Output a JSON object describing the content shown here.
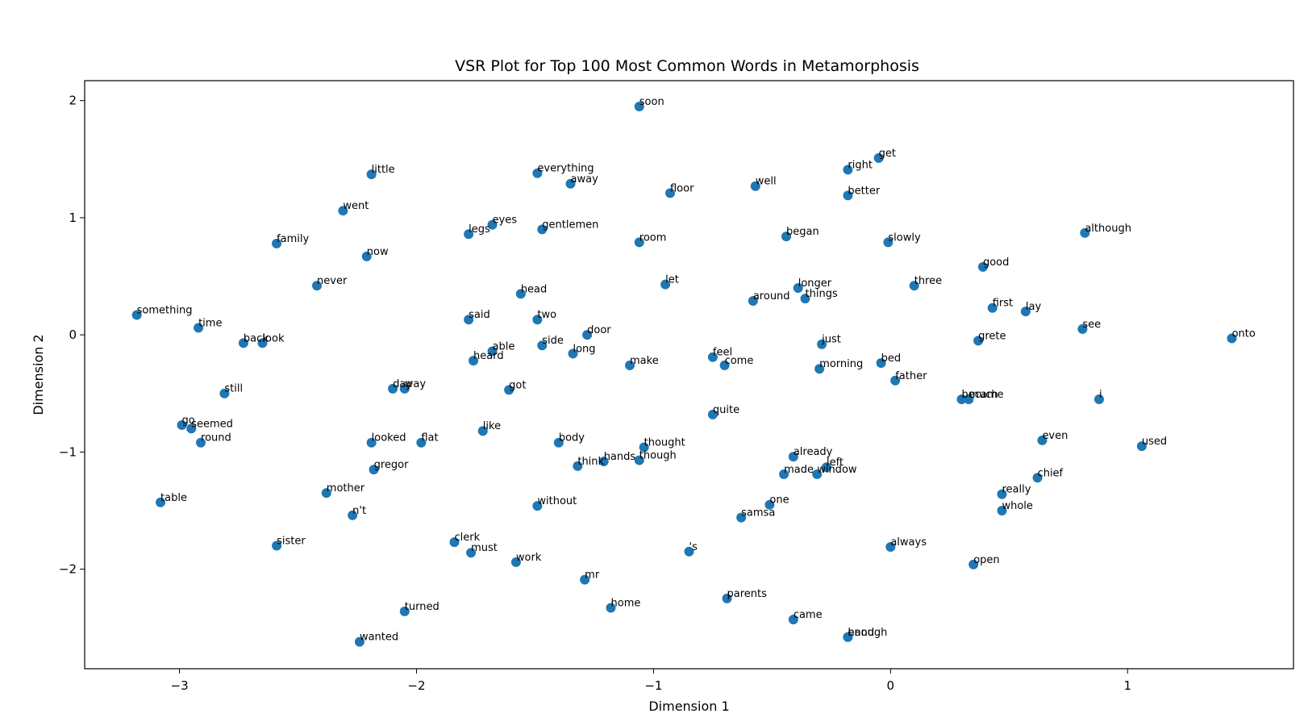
{
  "chart_data": {
    "type": "scatter",
    "title": "VSR Plot for Top 100 Most Common Words in Metamorphosis",
    "xlabel": "Dimension 1",
    "ylabel": "Dimension 2",
    "xlim": [
      -3.4,
      1.7
    ],
    "ylim": [
      -2.85,
      2.17
    ],
    "xticks": [
      -3,
      -2,
      -1,
      0,
      1
    ],
    "yticks": [
      -2,
      -1,
      0,
      1,
      2
    ],
    "grid": false,
    "marker_color": "#1f77b4",
    "points": [
      {
        "label": "soon",
        "x": -1.06,
        "y": 1.95
      },
      {
        "label": "little",
        "x": -2.19,
        "y": 1.37
      },
      {
        "label": "everything",
        "x": -1.49,
        "y": 1.38
      },
      {
        "label": "away",
        "x": -1.35,
        "y": 1.29
      },
      {
        "label": "floor",
        "x": -0.93,
        "y": 1.21
      },
      {
        "label": "well",
        "x": -0.57,
        "y": 1.27
      },
      {
        "label": "right",
        "x": -0.18,
        "y": 1.41
      },
      {
        "label": "get",
        "x": -0.05,
        "y": 1.51
      },
      {
        "label": "better",
        "x": -0.18,
        "y": 1.19
      },
      {
        "label": "went",
        "x": -2.31,
        "y": 1.06
      },
      {
        "label": "eyes",
        "x": -1.68,
        "y": 0.94
      },
      {
        "label": "legs",
        "x": -1.78,
        "y": 0.86
      },
      {
        "label": "gentlemen",
        "x": -1.47,
        "y": 0.9
      },
      {
        "label": "room",
        "x": -1.06,
        "y": 0.79
      },
      {
        "label": "began",
        "x": -0.44,
        "y": 0.84
      },
      {
        "label": "slowly",
        "x": -0.01,
        "y": 0.79
      },
      {
        "label": "although",
        "x": 0.82,
        "y": 0.87
      },
      {
        "label": "family",
        "x": -2.59,
        "y": 0.78
      },
      {
        "label": "now",
        "x": -2.21,
        "y": 0.67
      },
      {
        "label": "good",
        "x": 0.39,
        "y": 0.58
      },
      {
        "label": "never",
        "x": -2.42,
        "y": 0.42
      },
      {
        "label": "let",
        "x": -0.95,
        "y": 0.43
      },
      {
        "label": "head",
        "x": -1.56,
        "y": 0.35
      },
      {
        "label": "longer",
        "x": -0.39,
        "y": 0.4
      },
      {
        "label": "three",
        "x": 0.1,
        "y": 0.42
      },
      {
        "label": "things",
        "x": -0.36,
        "y": 0.31
      },
      {
        "label": "around",
        "x": -0.58,
        "y": 0.29
      },
      {
        "label": "first",
        "x": 0.43,
        "y": 0.23
      },
      {
        "label": "lay",
        "x": 0.57,
        "y": 0.2
      },
      {
        "label": "something",
        "x": -3.18,
        "y": 0.17
      },
      {
        "label": "said",
        "x": -1.78,
        "y": 0.13
      },
      {
        "label": "two",
        "x": -1.49,
        "y": 0.13
      },
      {
        "label": "time",
        "x": -2.92,
        "y": 0.06
      },
      {
        "label": "see",
        "x": 0.81,
        "y": 0.05
      },
      {
        "label": "door",
        "x": -1.28,
        "y": 0.0
      },
      {
        "label": "onto",
        "x": 1.44,
        "y": -0.03
      },
      {
        "label": "back",
        "x": -2.73,
        "y": -0.07
      },
      {
        "label": "look",
        "x": -2.65,
        "y": -0.07
      },
      {
        "label": "side",
        "x": -1.47,
        "y": -0.09
      },
      {
        "label": "just",
        "x": -0.29,
        "y": -0.08
      },
      {
        "label": "grete",
        "x": 0.37,
        "y": -0.05
      },
      {
        "label": "able",
        "x": -1.68,
        "y": -0.14
      },
      {
        "label": "long",
        "x": -1.34,
        "y": -0.16
      },
      {
        "label": "heard",
        "x": -1.76,
        "y": -0.22
      },
      {
        "label": "feel",
        "x": -0.75,
        "y": -0.19
      },
      {
        "label": "bed",
        "x": -0.04,
        "y": -0.24
      },
      {
        "label": "make",
        "x": -1.1,
        "y": -0.26
      },
      {
        "label": "come",
        "x": -0.7,
        "y": -0.26
      },
      {
        "label": "morning",
        "x": -0.3,
        "y": -0.29
      },
      {
        "label": "father",
        "x": 0.02,
        "y": -0.39
      },
      {
        "label": "day",
        "x": -2.1,
        "y": -0.46
      },
      {
        "label": "way",
        "x": -2.05,
        "y": -0.46
      },
      {
        "label": "got",
        "x": -1.61,
        "y": -0.47
      },
      {
        "label": "still",
        "x": -2.81,
        "y": -0.5
      },
      {
        "label": "became",
        "x": 0.3,
        "y": -0.55
      },
      {
        "label": "much",
        "x": 0.33,
        "y": -0.55
      },
      {
        "label": "i",
        "x": 0.88,
        "y": -0.55
      },
      {
        "label": "quite",
        "x": -0.75,
        "y": -0.68
      },
      {
        "label": "go",
        "x": -2.99,
        "y": -0.77
      },
      {
        "label": "seemed",
        "x": -2.95,
        "y": -0.8
      },
      {
        "label": "like",
        "x": -1.72,
        "y": -0.82
      },
      {
        "label": "round",
        "x": -2.91,
        "y": -0.92
      },
      {
        "label": "looked",
        "x": -2.19,
        "y": -0.92
      },
      {
        "label": "flat",
        "x": -1.98,
        "y": -0.92
      },
      {
        "label": "body",
        "x": -1.4,
        "y": -0.92
      },
      {
        "label": "even",
        "x": 0.64,
        "y": -0.9
      },
      {
        "label": "used",
        "x": 1.06,
        "y": -0.95
      },
      {
        "label": "thought",
        "x": -1.04,
        "y": -0.96
      },
      {
        "label": "already",
        "x": -0.41,
        "y": -1.04
      },
      {
        "label": "hands",
        "x": -1.21,
        "y": -1.08
      },
      {
        "label": "though",
        "x": -1.06,
        "y": -1.07
      },
      {
        "label": "think",
        "x": -1.32,
        "y": -1.12
      },
      {
        "label": "gregor",
        "x": -2.18,
        "y": -1.15
      },
      {
        "label": "left",
        "x": -0.27,
        "y": -1.13
      },
      {
        "label": "made",
        "x": -0.45,
        "y": -1.19
      },
      {
        "label": "window",
        "x": -0.31,
        "y": -1.19
      },
      {
        "label": "chief",
        "x": 0.62,
        "y": -1.22
      },
      {
        "label": "mother",
        "x": -2.38,
        "y": -1.35
      },
      {
        "label": "really",
        "x": 0.47,
        "y": -1.36
      },
      {
        "label": "table",
        "x": -3.08,
        "y": -1.43
      },
      {
        "label": "without",
        "x": -1.49,
        "y": -1.46
      },
      {
        "label": "one",
        "x": -0.51,
        "y": -1.45
      },
      {
        "label": "whole",
        "x": 0.47,
        "y": -1.5
      },
      {
        "label": "n't",
        "x": -2.27,
        "y": -1.54
      },
      {
        "label": "samsa",
        "x": -0.63,
        "y": -1.56
      },
      {
        "label": "clerk",
        "x": -1.84,
        "y": -1.77
      },
      {
        "label": "sister",
        "x": -2.59,
        "y": -1.8
      },
      {
        "label": "always",
        "x": 0.0,
        "y": -1.81
      },
      {
        "label": "must",
        "x": -1.77,
        "y": -1.86
      },
      {
        "label": "'s",
        "x": -0.85,
        "y": -1.85
      },
      {
        "label": "work",
        "x": -1.58,
        "y": -1.94
      },
      {
        "label": "open",
        "x": 0.35,
        "y": -1.96
      },
      {
        "label": "mr",
        "x": -1.29,
        "y": -2.09
      },
      {
        "label": "home",
        "x": -1.18,
        "y": -2.33
      },
      {
        "label": "parents",
        "x": -0.69,
        "y": -2.25
      },
      {
        "label": "turned",
        "x": -2.05,
        "y": -2.36
      },
      {
        "label": "came",
        "x": -0.41,
        "y": -2.43
      },
      {
        "label": "wanted",
        "x": -2.24,
        "y": -2.62
      },
      {
        "label": "hand",
        "x": -0.18,
        "y": -2.58
      },
      {
        "label": "enough",
        "x": -0.18,
        "y": -2.58
      }
    ]
  }
}
